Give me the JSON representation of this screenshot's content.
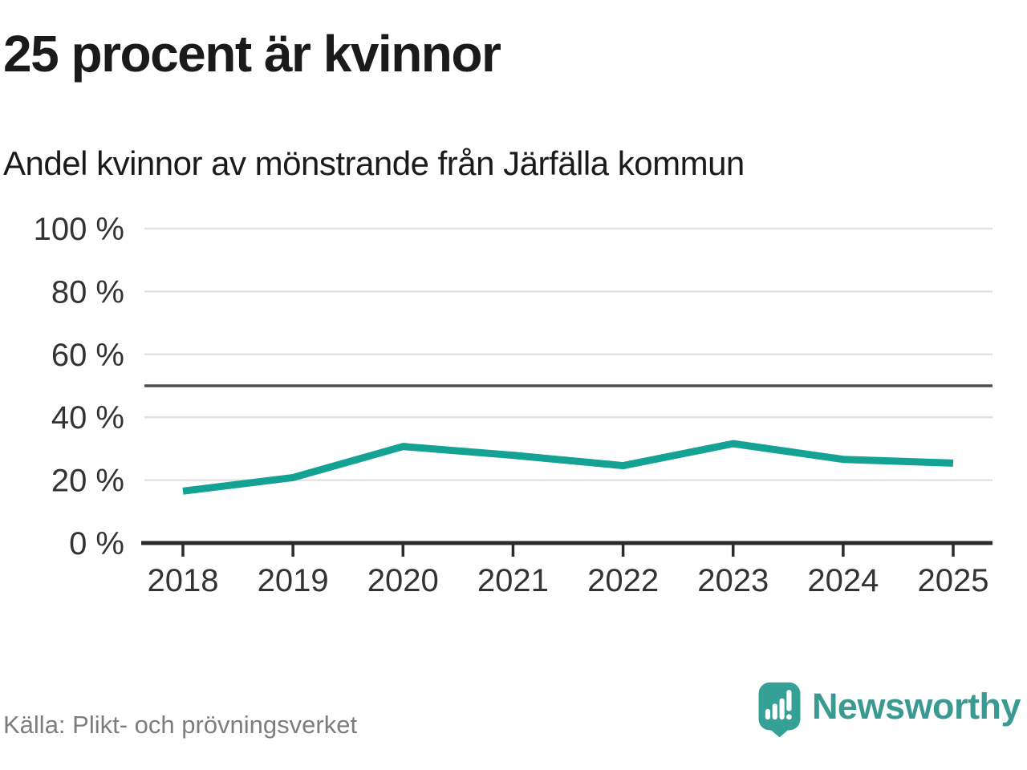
{
  "header": {
    "title": "25 procent är kvinnor",
    "subtitle": "Andel kvinnor av mönstrande från Järfälla kommun"
  },
  "chart_data": {
    "type": "line",
    "title": "25 procent är kvinnor",
    "subtitle": "Andel kvinnor av mönstrande från Järfälla kommun",
    "categories": [
      "2018",
      "2019",
      "2020",
      "2021",
      "2022",
      "2023",
      "2024",
      "2025"
    ],
    "series": [
      {
        "name": "Andel kvinnor",
        "values": [
          16.5,
          20.8,
          30.7,
          27.9,
          24.6,
          31.6,
          26.6,
          25.4
        ]
      }
    ],
    "unit": "%",
    "ylim": [
      0,
      100
    ],
    "yticks": [
      0,
      20,
      40,
      60,
      80,
      100
    ],
    "ytick_labels": [
      "0 %",
      "20 %",
      "40 %",
      "60 %",
      "80 %",
      "100 %"
    ],
    "reference_line": 50,
    "grid": "horizontal",
    "legend": "none",
    "colors": {
      "line": "#14a294",
      "grid": "#e2e2e2",
      "reference_line": "#4d4d4d",
      "axis": "#2b2b2b",
      "tick_label": "#333333"
    }
  },
  "footer": {
    "source": "Källa: Plikt- och prövningsverket",
    "logo_text": "Newsworthy",
    "logo_color": "#3a9a91",
    "logo_icon": "speech-bubble-bar-chart-exclamation"
  }
}
